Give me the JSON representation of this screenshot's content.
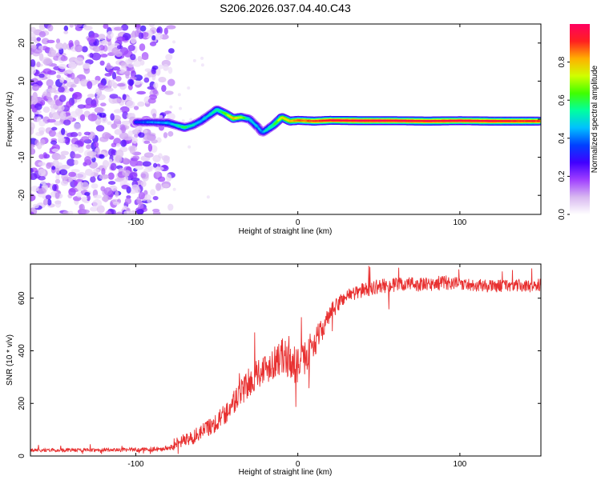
{
  "title": "S206.2026.037.04.40.C43",
  "chart_data": [
    {
      "type": "heatmap",
      "title": "S206.2026.037.04.40.C43",
      "xlabel": "Height of straight line (km)",
      "ylabel": "Frequency (Hz)",
      "xlim": [
        -165,
        150
      ],
      "ylim": [
        -25,
        25
      ],
      "xticks": [
        -100,
        0,
        100
      ],
      "yticks": [
        -20,
        -10,
        0,
        10,
        20
      ],
      "x_tick_labels": [
        "-100",
        "0",
        "100"
      ],
      "y_tick_labels": [
        "-20",
        "-10",
        "0",
        "10",
        "20"
      ],
      "colorbar": {
        "label": "Normalized spectral amplitude",
        "range": [
          0.0,
          1.0
        ],
        "ticks": [
          0.0,
          0.2,
          0.4,
          0.6,
          0.8
        ],
        "tick_labels": [
          "0.0",
          "0.2",
          "0.4",
          "0.6",
          "0.8"
        ],
        "colors": [
          "#ffffff",
          "#d8b8f0",
          "#a040ff",
          "#4000ff",
          "#0040ff",
          "#00c0ff",
          "#00ffa0",
          "#40ff00",
          "#d0ff00",
          "#ffb000",
          "#ff2020",
          "#ff0060"
        ]
      },
      "noise_region_km": [
        -165,
        -78
      ],
      "signal_trace": {
        "description_free": true,
        "x": [
          -100,
          -90,
          -80,
          -75,
          -70,
          -65,
          -60,
          -55,
          -50,
          -45,
          -40,
          -35,
          -30,
          -25,
          -22,
          -20,
          -15,
          -10,
          -5,
          0,
          10,
          20,
          40,
          60,
          80,
          100,
          120,
          148
        ],
        "freq": [
          -0.8,
          -0.8,
          -1.0,
          -1.6,
          -2.2,
          -1.6,
          -0.5,
          1.0,
          2.5,
          1.5,
          0.2,
          0.5,
          0.0,
          -2.0,
          -3.5,
          -3.0,
          -1.5,
          0.5,
          -0.5,
          -0.3,
          -0.5,
          -0.3,
          -0.4,
          -0.4,
          -0.5,
          -0.4,
          -0.5,
          -0.5
        ],
        "amplitude": [
          0.35,
          0.4,
          0.45,
          0.5,
          0.6,
          0.5,
          0.45,
          0.5,
          0.55,
          0.65,
          0.8,
          0.7,
          0.5,
          0.45,
          0.4,
          0.5,
          0.6,
          0.75,
          0.8,
          0.85,
          0.9,
          0.95,
          0.97,
          0.96,
          0.95,
          0.95,
          0.94,
          0.9
        ]
      }
    },
    {
      "type": "line",
      "xlabel": "Height of straight line (km)",
      "ylabel": "SNR (10 * v/v)",
      "xlim": [
        -165,
        150
      ],
      "ylim": [
        0,
        730
      ],
      "xticks": [
        -100,
        0,
        100
      ],
      "yticks": [
        0,
        200,
        400,
        600
      ],
      "x_tick_labels": [
        "-100",
        "0",
        "100"
      ],
      "y_tick_labels": [
        "0",
        "200",
        "400",
        "600"
      ],
      "series": [
        {
          "name": "SNR",
          "color": "#e83030",
          "x": [
            -165,
            -150,
            -130,
            -110,
            -90,
            -80,
            -75,
            -70,
            -65,
            -60,
            -55,
            -50,
            -45,
            -40,
            -35,
            -30,
            -25,
            -20,
            -15,
            -10,
            -5,
            0,
            5,
            10,
            15,
            20,
            25,
            30,
            40,
            50,
            60,
            70,
            80,
            90,
            100,
            110,
            120,
            130,
            140,
            150
          ],
          "values": [
            22,
            22,
            23,
            23,
            25,
            30,
            40,
            60,
            70,
            90,
            110,
            130,
            160,
            200,
            240,
            280,
            320,
            330,
            360,
            380,
            360,
            340,
            380,
            430,
            480,
            540,
            580,
            610,
            630,
            645,
            650,
            655,
            650,
            660,
            655,
            650,
            645,
            650,
            645,
            650
          ],
          "noise_amplitude": [
            10,
            10,
            10,
            10,
            12,
            15,
            25,
            40,
            40,
            45,
            50,
            55,
            60,
            70,
            75,
            80,
            85,
            90,
            95,
            100,
            100,
            100,
            90,
            80,
            60,
            50,
            45,
            40,
            40,
            40,
            40,
            40,
            40,
            40,
            35,
            35,
            35,
            35,
            35,
            35
          ]
        }
      ]
    }
  ]
}
